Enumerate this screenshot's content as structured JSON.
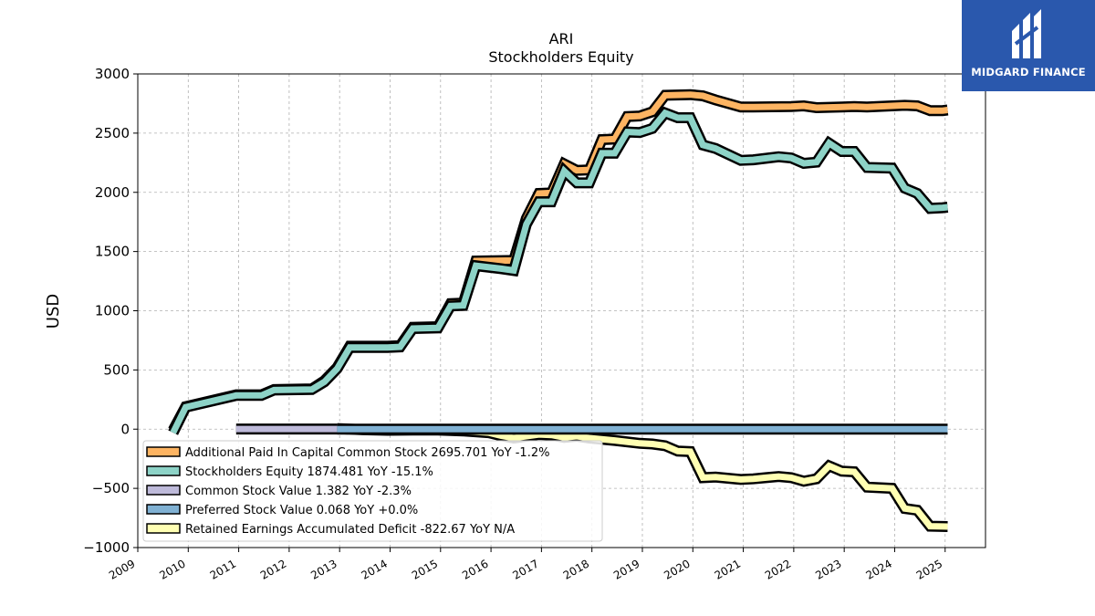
{
  "chart_data": {
    "type": "line",
    "title": "ARI",
    "subtitle": "Stockholders  Equity",
    "ylabel": "USD",
    "xlabel": "",
    "ylim": [
      -1000,
      3000
    ],
    "xlim": [
      2009.0,
      2025.8
    ],
    "yticks": [
      3000,
      2500,
      2000,
      1500,
      1000,
      500,
      0,
      -500,
      -1000
    ],
    "ytick_labels": [
      "3000",
      "2500",
      "2000",
      "1500",
      "1000",
      "500",
      "0",
      "−500",
      "−1000"
    ],
    "xticks": [
      2009,
      2010,
      2011,
      2012,
      2013,
      2014,
      2015,
      2016,
      2017,
      2018,
      2019,
      2020,
      2021,
      2022,
      2023,
      2024,
      2025
    ],
    "xtick_labels": [
      "2009",
      "2010",
      "2011",
      "2012",
      "2013",
      "2014",
      "2015",
      "2016",
      "2017",
      "2018",
      "2019",
      "2020",
      "2021",
      "2022",
      "2023",
      "2024",
      "2025"
    ],
    "grid": true,
    "legend_position": "lower-left",
    "series": [
      {
        "name": "Additional Paid In Capital Common Stock",
        "legend": "Additional Paid In Capital Common Stock  2695.701 YoY -1.2%",
        "color": "#fdb462",
        "points": [
          [
            2009.7,
            -10
          ],
          [
            2009.95,
            190
          ],
          [
            2010.95,
            290
          ],
          [
            2011.45,
            290
          ],
          [
            2011.7,
            335
          ],
          [
            2012.45,
            340
          ],
          [
            2012.7,
            410
          ],
          [
            2012.95,
            520
          ],
          [
            2013.2,
            700
          ],
          [
            2013.95,
            700
          ],
          [
            2014.2,
            705
          ],
          [
            2014.45,
            860
          ],
          [
            2014.95,
            865
          ],
          [
            2015.2,
            1060
          ],
          [
            2015.45,
            1065
          ],
          [
            2015.7,
            1420
          ],
          [
            2016.45,
            1425
          ],
          [
            2016.7,
            1780
          ],
          [
            2016.95,
            1990
          ],
          [
            2017.2,
            1995
          ],
          [
            2017.45,
            2240
          ],
          [
            2017.7,
            2185
          ],
          [
            2017.95,
            2190
          ],
          [
            2018.2,
            2445
          ],
          [
            2018.45,
            2450
          ],
          [
            2018.7,
            2640
          ],
          [
            2018.95,
            2645
          ],
          [
            2019.2,
            2680
          ],
          [
            2019.45,
            2820
          ],
          [
            2019.95,
            2825
          ],
          [
            2020.2,
            2815
          ],
          [
            2020.45,
            2780
          ],
          [
            2020.95,
            2720
          ],
          [
            2021.2,
            2720
          ],
          [
            2021.95,
            2725
          ],
          [
            2022.2,
            2730
          ],
          [
            2022.45,
            2715
          ],
          [
            2022.95,
            2720
          ],
          [
            2023.2,
            2725
          ],
          [
            2023.45,
            2720
          ],
          [
            2023.95,
            2730
          ],
          [
            2024.2,
            2735
          ],
          [
            2024.45,
            2730
          ],
          [
            2024.7,
            2690
          ],
          [
            2024.95,
            2690
          ],
          [
            2025.05,
            2695.701
          ]
        ]
      },
      {
        "name": "Stockholders Equity",
        "legend": "Stockholders Equity  1874.481 YoY -15.1%",
        "color": "#8dd3c7",
        "points": [
          [
            2009.7,
            -30
          ],
          [
            2009.95,
            185
          ],
          [
            2010.95,
            285
          ],
          [
            2011.45,
            285
          ],
          [
            2011.7,
            330
          ],
          [
            2012.45,
            335
          ],
          [
            2012.7,
            400
          ],
          [
            2012.95,
            510
          ],
          [
            2013.2,
            690
          ],
          [
            2013.95,
            690
          ],
          [
            2014.2,
            695
          ],
          [
            2014.45,
            850
          ],
          [
            2014.95,
            855
          ],
          [
            2015.2,
            1040
          ],
          [
            2015.45,
            1045
          ],
          [
            2015.7,
            1380
          ],
          [
            2016.2,
            1355
          ],
          [
            2016.45,
            1340
          ],
          [
            2016.7,
            1730
          ],
          [
            2016.95,
            1920
          ],
          [
            2017.2,
            1920
          ],
          [
            2017.45,
            2180
          ],
          [
            2017.7,
            2080
          ],
          [
            2017.95,
            2080
          ],
          [
            2018.2,
            2330
          ],
          [
            2018.45,
            2330
          ],
          [
            2018.7,
            2510
          ],
          [
            2018.95,
            2505
          ],
          [
            2019.2,
            2540
          ],
          [
            2019.45,
            2670
          ],
          [
            2019.7,
            2630
          ],
          [
            2019.95,
            2630
          ],
          [
            2020.2,
            2400
          ],
          [
            2020.45,
            2370
          ],
          [
            2020.95,
            2270
          ],
          [
            2021.2,
            2275
          ],
          [
            2021.7,
            2300
          ],
          [
            2021.95,
            2290
          ],
          [
            2022.2,
            2245
          ],
          [
            2022.45,
            2255
          ],
          [
            2022.7,
            2415
          ],
          [
            2022.95,
            2345
          ],
          [
            2023.2,
            2345
          ],
          [
            2023.45,
            2210
          ],
          [
            2023.95,
            2205
          ],
          [
            2024.2,
            2035
          ],
          [
            2024.45,
            1990
          ],
          [
            2024.7,
            1865
          ],
          [
            2024.95,
            1870
          ],
          [
            2025.05,
            1874.481
          ]
        ]
      },
      {
        "name": "Common Stock Value",
        "legend": "Common Stock Value  1.382 YoY -2.3%",
        "color": "#bebada",
        "points": [
          [
            2010.95,
            1.2
          ],
          [
            2012.95,
            1.4
          ]
        ]
      },
      {
        "name": "Preferred Stock Value",
        "legend": "Preferred Stock Value  0.068 YoY +0.0%",
        "color": "#80b1d3",
        "points": [
          [
            2012.95,
            0.068
          ],
          [
            2025.05,
            0.068
          ]
        ]
      },
      {
        "name": "Retained Earnings Accumulated Deficit",
        "legend": "Retained Earnings Accumulated Deficit  -822.67 YoY N/A",
        "color": "#ffffb3",
        "points": [
          [
            2012.95,
            5
          ],
          [
            2013.45,
            -5
          ],
          [
            2013.95,
            -10
          ],
          [
            2014.45,
            -8
          ],
          [
            2014.95,
            -8
          ],
          [
            2015.45,
            -15
          ],
          [
            2015.95,
            -30
          ],
          [
            2016.2,
            -55
          ],
          [
            2016.45,
            -75
          ],
          [
            2016.7,
            -60
          ],
          [
            2016.95,
            -45
          ],
          [
            2017.2,
            -50
          ],
          [
            2017.45,
            -70
          ],
          [
            2017.7,
            -60
          ],
          [
            2017.95,
            -75
          ],
          [
            2018.45,
            -95
          ],
          [
            2018.95,
            -120
          ],
          [
            2019.2,
            -125
          ],
          [
            2019.45,
            -140
          ],
          [
            2019.7,
            -185
          ],
          [
            2019.95,
            -190
          ],
          [
            2020.2,
            -410
          ],
          [
            2020.45,
            -405
          ],
          [
            2020.95,
            -425
          ],
          [
            2021.2,
            -420
          ],
          [
            2021.45,
            -410
          ],
          [
            2021.7,
            -400
          ],
          [
            2021.95,
            -410
          ],
          [
            2022.2,
            -440
          ],
          [
            2022.45,
            -420
          ],
          [
            2022.7,
            -310
          ],
          [
            2022.95,
            -355
          ],
          [
            2023.2,
            -360
          ],
          [
            2023.45,
            -490
          ],
          [
            2023.95,
            -500
          ],
          [
            2024.2,
            -670
          ],
          [
            2024.45,
            -685
          ],
          [
            2024.7,
            -820
          ],
          [
            2024.95,
            -822
          ],
          [
            2025.05,
            -822.67
          ]
        ]
      }
    ]
  },
  "branding": {
    "logo_text": "MIDGARD FINANCE",
    "background_color": "#2a58ad"
  }
}
